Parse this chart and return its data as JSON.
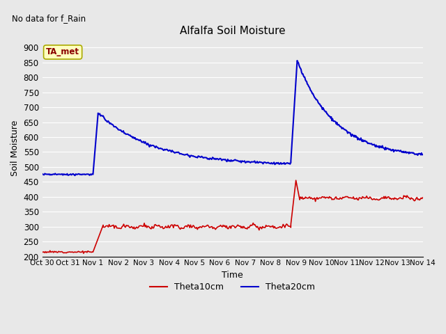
{
  "title": "Alfalfa Soil Moisture",
  "xlabel": "Time",
  "ylabel": "Soil Moisture",
  "top_left_text": "No data for f_Rain",
  "legend_label": "TA_met",
  "ylim": [
    200,
    925
  ],
  "yticks": [
    200,
    250,
    300,
    350,
    400,
    450,
    500,
    550,
    600,
    650,
    700,
    750,
    800,
    850,
    900
  ],
  "background_color": "#e8e8e8",
  "plot_bg_color": "#e8e8e8",
  "grid_color": "#ffffff",
  "red_color": "#cc0000",
  "blue_color": "#0000cc",
  "legend_box_facecolor": "#ffffc0",
  "legend_box_edgecolor": "#aaaa00",
  "xtick_labels": [
    "Oct 30",
    "Oct 31",
    "Nov 1",
    "Nov 2",
    "Nov 3",
    "Nov 4",
    "Nov 5",
    "Nov 6",
    "Nov 7",
    "Nov 8",
    "Nov 9",
    "Nov 10",
    "Nov 11",
    "Nov 12",
    "Nov 13",
    "Nov 14"
  ],
  "xtick_positions": [
    0,
    1,
    2,
    3,
    4,
    5,
    6,
    7,
    8,
    9,
    10,
    11,
    12,
    13,
    14,
    15
  ]
}
